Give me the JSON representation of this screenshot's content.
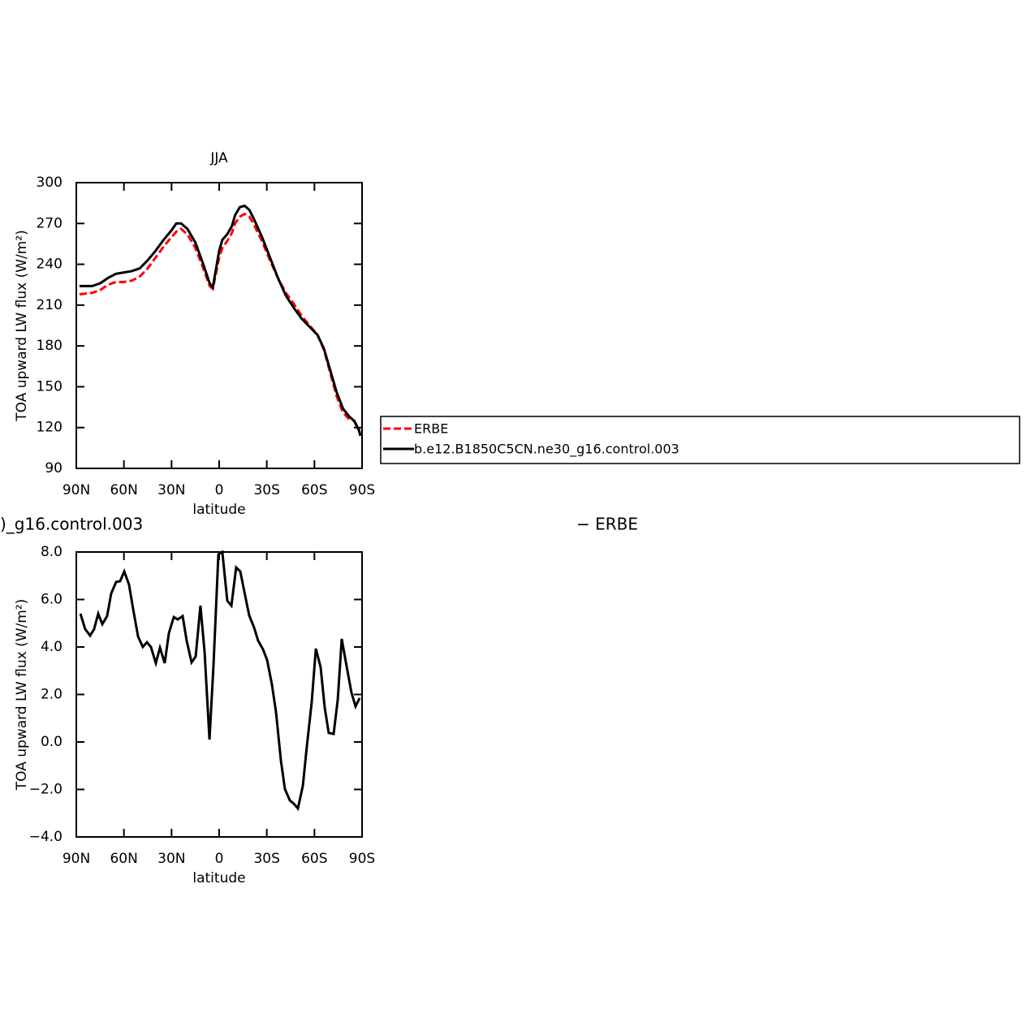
{
  "chart_data": [
    {
      "type": "line",
      "title": "JJA",
      "xlabel": "latitude",
      "ylabel": "TOA upward LW flux (W/m²)",
      "xlim": [
        90,
        -90
      ],
      "xticks": [
        {
          "value": 90,
          "label": "90N"
        },
        {
          "value": 60,
          "label": "60N"
        },
        {
          "value": 30,
          "label": "30N"
        },
        0,
        {
          "value": -30,
          "label": "30S"
        },
        {
          "value": -60,
          "label": "60S"
        },
        {
          "value": -90,
          "label": "90S"
        }
      ],
      "ylim": [
        90,
        300
      ],
      "yticks": [
        90,
        120,
        150,
        180,
        210,
        240,
        270,
        300
      ],
      "legend": "right",
      "x": [
        88,
        80,
        75,
        70,
        65,
        60,
        55,
        50,
        45,
        40,
        35,
        30,
        27,
        24,
        20,
        15,
        10,
        6,
        4,
        0,
        -2,
        -5,
        -8,
        -10,
        -13,
        -16,
        -19,
        -22,
        -27,
        -32,
        -37,
        -42,
        -47,
        -52,
        -57,
        -62,
        -66,
        -70,
        -74,
        -78,
        -82,
        -85,
        -88,
        -89
      ],
      "series": [
        {
          "name": "ERBE",
          "color": "#ff0000",
          "dash": true,
          "values": [
            218,
            219,
            221,
            225,
            227,
            227,
            228,
            231,
            237,
            245,
            253,
            260,
            264,
            266,
            262,
            252,
            237,
            224,
            222,
            245,
            252,
            257,
            263,
            270,
            275,
            277,
            275,
            269,
            257,
            243,
            230,
            219,
            211,
            202,
            195,
            188,
            177,
            160,
            143,
            131,
            126,
            125,
            119,
            114
          ]
        },
        {
          "name": "b.e12.B1850C5CN.ne30_g16.control.003",
          "color": "#000000",
          "dash": false,
          "values": [
            224,
            224,
            226,
            230,
            233,
            234,
            235,
            237,
            243,
            250,
            258,
            265,
            270,
            270,
            266,
            256,
            240,
            226,
            223,
            250,
            258,
            262,
            268,
            276,
            282,
            283,
            280,
            273,
            260,
            245,
            230,
            217,
            208,
            200,
            194,
            188,
            178,
            162,
            146,
            134,
            128,
            125,
            118,
            114
          ]
        }
      ]
    },
    {
      "type": "line",
      "left_string": ")_g16.control.003",
      "right_string": "− ERBE",
      "xlabel": "latitude",
      "ylabel": "TOA upward LW flux (W/m²)",
      "xlim": [
        90,
        -90
      ],
      "xticks": [
        {
          "value": 90,
          "label": "90N"
        },
        {
          "value": 60,
          "label": "60N"
        },
        {
          "value": 30,
          "label": "30N"
        },
        0,
        {
          "value": -30,
          "label": "30S"
        },
        {
          "value": -60,
          "label": "60S"
        },
        {
          "value": -90,
          "label": "90S"
        }
      ],
      "ylim": [
        -4,
        8
      ],
      "yticks": [
        {
          "value": -4,
          "label": "−4.0"
        },
        {
          "value": -2,
          "label": "−2.0"
        },
        {
          "value": 0,
          "label": "0.0"
        },
        {
          "value": 2,
          "label": "2.0"
        },
        {
          "value": 4,
          "label": "4.0"
        },
        {
          "value": 6,
          "label": "6.0"
        },
        {
          "value": 8,
          "label": "8.0"
        }
      ],
      "color": "#000000",
      "x": [
        87.4,
        84.4,
        81.3,
        78.8,
        76.2,
        73.6,
        70.6,
        68,
        64.9,
        62.4,
        59.8,
        56.8,
        54.2,
        51.1,
        48.1,
        45.5,
        43,
        39.9,
        37.3,
        34.3,
        31.7,
        28.6,
        26.1,
        23,
        20.5,
        17.4,
        14.8,
        11.8,
        9.2,
        6.1,
        3.6,
        0.5,
        -2,
        -5.1,
        -7.7,
        -10.7,
        -13.3,
        -16.4,
        -18.9,
        -22,
        -24.5,
        -27.6,
        -30.2,
        -33.2,
        -35.8,
        -38.9,
        -41.4,
        -44.5,
        -47,
        -49.6,
        -52.7,
        -55.2,
        -58.3,
        -60.9,
        -63.9,
        -66.5,
        -69,
        -72.1,
        -74.7,
        -77.2,
        -80.3,
        -83.3,
        -85.9,
        -88.5
      ],
      "values": [
        5.4,
        4.75,
        4.48,
        4.75,
        5.4,
        4.96,
        5.3,
        6.26,
        6.74,
        6.77,
        7.18,
        6.63,
        5.6,
        4.44,
        4.0,
        4.2,
        4.0,
        3.32,
        3.97,
        3.32,
        4.58,
        5.26,
        5.16,
        5.3,
        4.27,
        3.35,
        3.6,
        5.74,
        3.8,
        0.1,
        3.2,
        7.9,
        8.0,
        5.95,
        5.74,
        7.35,
        7.18,
        6.15,
        5.33,
        4.82,
        4.27,
        3.9,
        3.45,
        2.43,
        1.26,
        -0.79,
        -1.98,
        -2.46,
        -2.6,
        -2.8,
        -1.85,
        -0.2,
        1.68,
        3.93,
        3.15,
        1.44,
        0.38,
        0.34,
        1.78,
        4.34,
        3.18,
        2.09,
        1.5,
        1.85
      ]
    }
  ]
}
